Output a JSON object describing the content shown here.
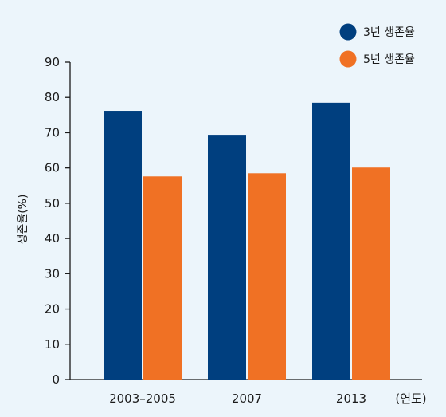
{
  "chart_data": {
    "type": "bar",
    "categories": [
      "2003–2005",
      "2007",
      "2013"
    ],
    "series": [
      {
        "name": "3년 생존율",
        "values": [
          76.2,
          69.4,
          78.5
        ],
        "color": "#003f7f"
      },
      {
        "name": "5년 생존율",
        "values": [
          57.6,
          58.5,
          60.1
        ],
        "color": "#f07124"
      }
    ],
    "ylabel": "생존율(%)",
    "xlabel": "(연도)",
    "ylim": [
      0,
      90
    ],
    "yticks": [
      0,
      10,
      20,
      30,
      40,
      50,
      60,
      70,
      80,
      90
    ],
    "legend_position": "top-right",
    "grid": false
  }
}
